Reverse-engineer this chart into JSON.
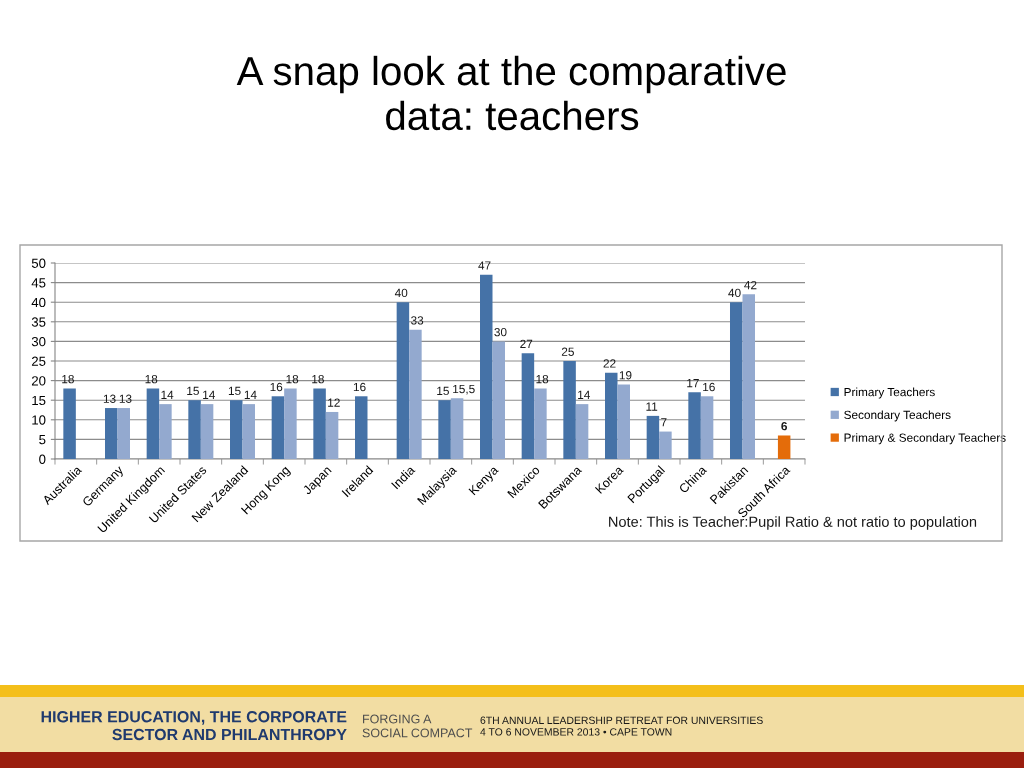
{
  "chart_data": {
    "type": "bar",
    "title": "A snap look at the comparative\ndata: teachers",
    "categories": [
      "Australia",
      "Germany",
      "United Kingdom",
      "United States",
      "New Zealand",
      "Hong Kong",
      "Japan",
      "Ireland",
      "India",
      "Malaysia",
      "Kenya",
      "Mexico",
      "Botswana",
      "Korea",
      "Portugal",
      "China",
      "Pakistan",
      "South Africa"
    ],
    "series": [
      {
        "name": "Primary Teachers",
        "color": "#4572a7",
        "values": [
          18,
          13,
          18,
          15,
          15,
          16,
          18,
          16,
          40,
          15,
          47,
          27,
          25,
          22,
          11,
          17,
          40,
          null
        ],
        "value_labels": [
          "18",
          "13",
          "18",
          "15",
          "15",
          "16",
          "18",
          "16",
          "40",
          "15",
          "47",
          "27",
          "25",
          "22",
          "11",
          "17",
          "40",
          null
        ]
      },
      {
        "name": "Secondary Teachers",
        "color": "#93a9cf",
        "values": [
          null,
          13,
          14,
          14,
          14,
          18,
          12,
          null,
          33,
          15.5,
          30,
          18,
          14,
          19,
          7,
          16,
          42,
          null
        ],
        "value_labels": [
          null,
          "13",
          "14",
          "14",
          "14",
          "18",
          "12",
          null,
          "33",
          "15,5",
          "30",
          "18",
          "14",
          "19",
          "7",
          "16",
          "42",
          null
        ]
      },
      {
        "name": "Primary & Secondary Teachers",
        "color": "#e46c0a",
        "values": [
          null,
          null,
          null,
          null,
          null,
          null,
          null,
          null,
          null,
          null,
          null,
          null,
          null,
          null,
          null,
          null,
          null,
          6
        ],
        "value_labels": [
          null,
          null,
          null,
          null,
          null,
          null,
          null,
          null,
          null,
          null,
          null,
          null,
          null,
          null,
          null,
          null,
          null,
          "6"
        ]
      }
    ],
    "ylim": [
      0,
      50
    ],
    "yticks": [
      0,
      5,
      10,
      15,
      20,
      25,
      30,
      35,
      40,
      45,
      50
    ],
    "grid": "y",
    "legend": "right",
    "annotations": [
      "Note: This is Teacher:Pupil Ratio & not ratio to population",
      "HIGHER EDUCATION, THE CORPORATE\nSECTOR AND PHILANTHROPY",
      "FORGING A\nSOCIAL COMPACT",
      "6TH ANNUAL LEADERSHIP RETREAT FOR UNIVERSITIES\n4 TO 6 NOVEMBER 2013 • CAPE TOWN"
    ]
  }
}
